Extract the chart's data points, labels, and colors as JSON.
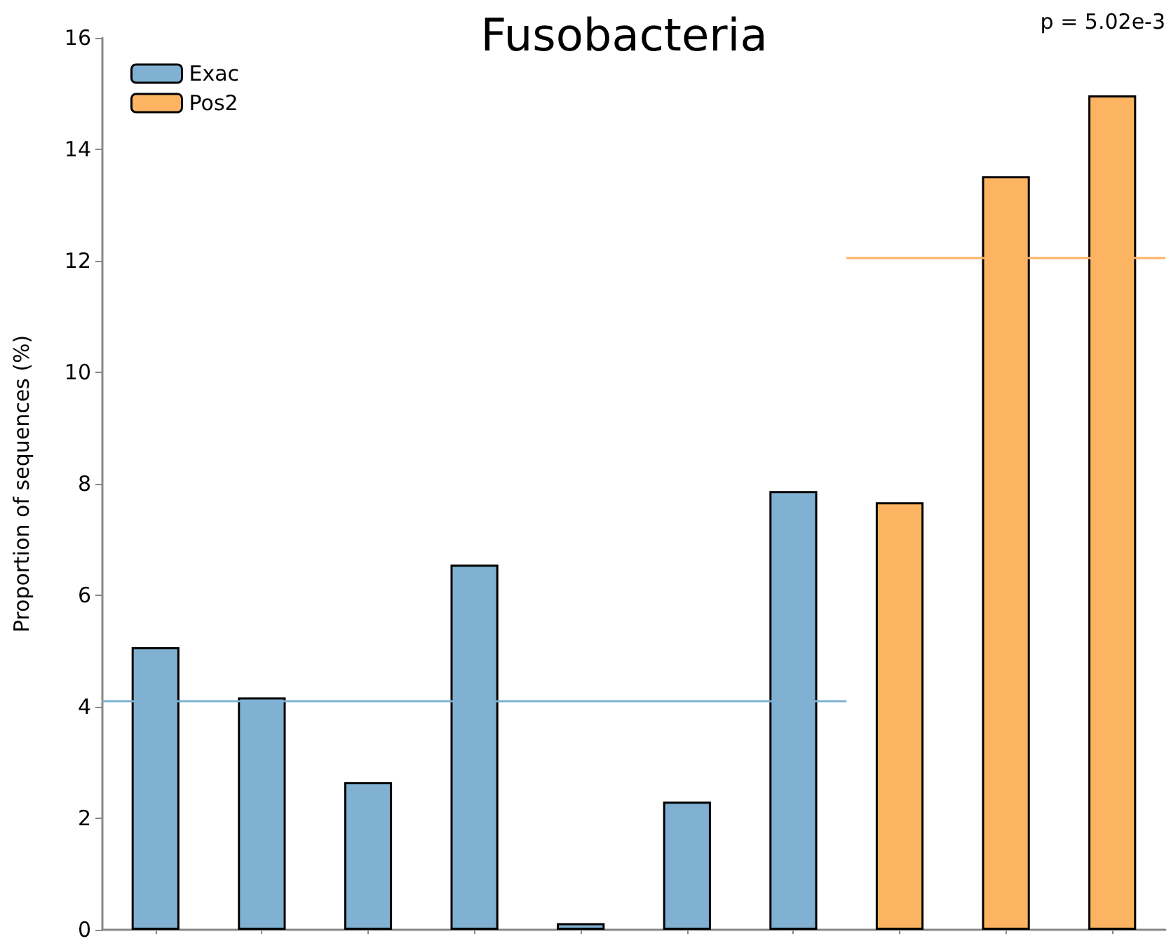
{
  "chart_data": {
    "type": "bar",
    "title": "Fusobacteria",
    "ylabel": "Proportion of sequences (%)",
    "annotations": [
      "p = 5.02e-3"
    ],
    "categories": [
      null,
      null,
      null,
      null,
      null,
      null,
      null,
      null,
      null,
      null
    ],
    "series": [
      {
        "name": "Exac",
        "color": "#80b1d3",
        "values": [
          5.07,
          4.17,
          2.65,
          6.55,
          0.12,
          2.3,
          7.87,
          null,
          null,
          null
        ]
      },
      {
        "name": "Pos2",
        "color": "#fdb462",
        "values": [
          null,
          null,
          null,
          null,
          null,
          null,
          null,
          7.67,
          13.52,
          14.97
        ]
      }
    ],
    "ref_lines": [
      {
        "axis": "y",
        "value": 4.1,
        "color": "#80b1d3"
      },
      {
        "axis": "y",
        "value": 12.05,
        "color": "#fdb462"
      }
    ],
    "stacked": true,
    "ylim": [
      0,
      16
    ],
    "yticks": [
      0,
      2,
      4,
      6,
      8,
      10,
      12,
      14,
      16
    ],
    "grid": false,
    "legend": "top left"
  }
}
